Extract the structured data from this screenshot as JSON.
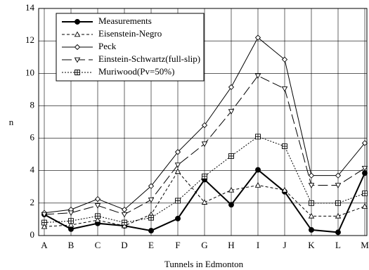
{
  "chart_data": {
    "type": "line",
    "x_label": "Tunnels in Edmonton",
    "y_label": "n",
    "categories": [
      "A",
      "B",
      "C",
      "D",
      "E",
      "F",
      "G",
      "H",
      "I",
      "J",
      "K",
      "L",
      "M"
    ],
    "ylim": [
      0,
      14
    ],
    "yticks": [
      0,
      2,
      4,
      6,
      8,
      10,
      12,
      14
    ],
    "grid": true,
    "legend": "upper left",
    "series": [
      {
        "name": "Measurements",
        "color": "#000000",
        "marker": "circle",
        "dash": "solid",
        "values": [
          1.3,
          0.4,
          0.75,
          0.6,
          0.3,
          1.05,
          3.45,
          1.9,
          4.05,
          2.7,
          0.35,
          0.2,
          3.85
        ]
      },
      {
        "name": "Eisenstein-Negro",
        "color": "#000000",
        "marker": "triangle-up",
        "dash": "dashed",
        "values": [
          0.55,
          0.65,
          0.95,
          0.6,
          1.3,
          3.95,
          2.05,
          2.8,
          3.1,
          2.8,
          1.2,
          1.2,
          1.8
        ]
      },
      {
        "name": "Peck",
        "color": "#000000",
        "marker": "diamond",
        "dash": "solid",
        "values": [
          1.4,
          1.6,
          2.25,
          1.6,
          3.05,
          5.15,
          6.8,
          9.15,
          12.2,
          10.85,
          3.7,
          3.7,
          5.7
        ]
      },
      {
        "name": "Einstein-Schwartz(full-slip)",
        "color": "#000000",
        "marker": "triangle-down",
        "dash": "long-dash",
        "values": [
          1.3,
          1.4,
          1.85,
          1.3,
          2.2,
          4.35,
          5.65,
          7.65,
          9.85,
          9.05,
          3.1,
          3.1,
          4.15
        ]
      },
      {
        "name": "Muriwood(Pv=50%)",
        "color": "#000000",
        "marker": "square-plus",
        "dash": "dotted",
        "values": [
          0.8,
          0.9,
          1.2,
          0.8,
          1.1,
          2.15,
          3.65,
          4.9,
          6.1,
          5.5,
          2.0,
          2.0,
          2.6
        ]
      }
    ]
  }
}
